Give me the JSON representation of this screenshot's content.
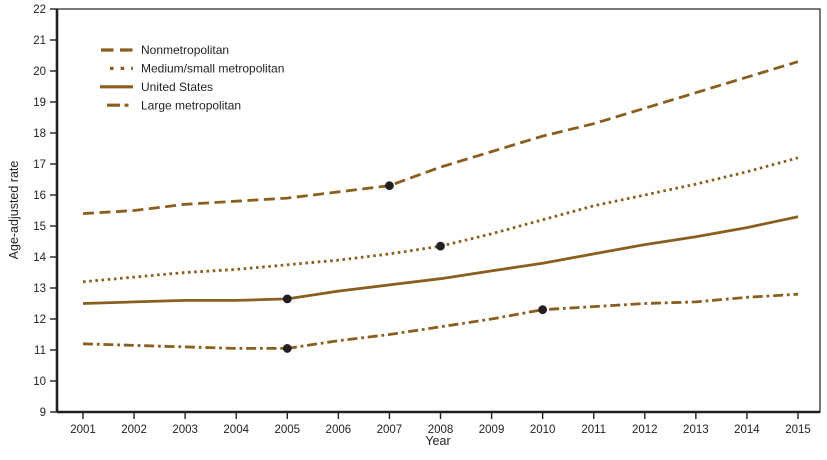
{
  "figure": {
    "background": "#ffffff",
    "line_color": "#8a5e1e",
    "marker_color": "#231f20",
    "axis_color": "#231f20",
    "text_color": "#231f20"
  },
  "chart_data": {
    "type": "line",
    "title": "",
    "xlabel": "Year",
    "ylabel": "Age-adjusted rate",
    "x": [
      2001,
      2002,
      2003,
      2004,
      2005,
      2006,
      2007,
      2008,
      2009,
      2010,
      2011,
      2012,
      2013,
      2014,
      2015
    ],
    "ylim": [
      9,
      22
    ],
    "ytick_step": 1,
    "grid": false,
    "legend_position": "top-left-inside",
    "series": [
      {
        "name": "Nonmetropolitan",
        "style": "dashed",
        "values": [
          15.4,
          15.5,
          15.7,
          15.8,
          15.9,
          16.1,
          16.3,
          16.9,
          17.4,
          17.9,
          18.3,
          18.8,
          19.3,
          19.8,
          20.3
        ],
        "joinpoints": [
          [
            2007,
            16.3
          ]
        ]
      },
      {
        "name": "Medium/small metropolitan",
        "style": "dotted",
        "values": [
          13.2,
          13.35,
          13.5,
          13.6,
          13.75,
          13.9,
          14.1,
          14.35,
          14.75,
          15.2,
          15.65,
          16.0,
          16.35,
          16.75,
          17.2
        ],
        "joinpoints": [
          [
            2008,
            14.35
          ]
        ]
      },
      {
        "name": "United States",
        "style": "solid",
        "values": [
          12.5,
          12.55,
          12.6,
          12.6,
          12.65,
          12.9,
          13.1,
          13.3,
          13.55,
          13.8,
          14.1,
          14.4,
          14.65,
          14.95,
          15.3
        ],
        "joinpoints": [
          [
            2005,
            12.65
          ]
        ]
      },
      {
        "name": "Large metropolitan",
        "style": "dashdot",
        "values": [
          11.2,
          11.15,
          11.1,
          11.05,
          11.05,
          11.3,
          11.5,
          11.75,
          12.0,
          12.3,
          12.4,
          12.5,
          12.55,
          12.7,
          12.8
        ],
        "joinpoints": [
          [
            2005,
            11.05
          ],
          [
            2010,
            12.3
          ]
        ]
      }
    ]
  }
}
